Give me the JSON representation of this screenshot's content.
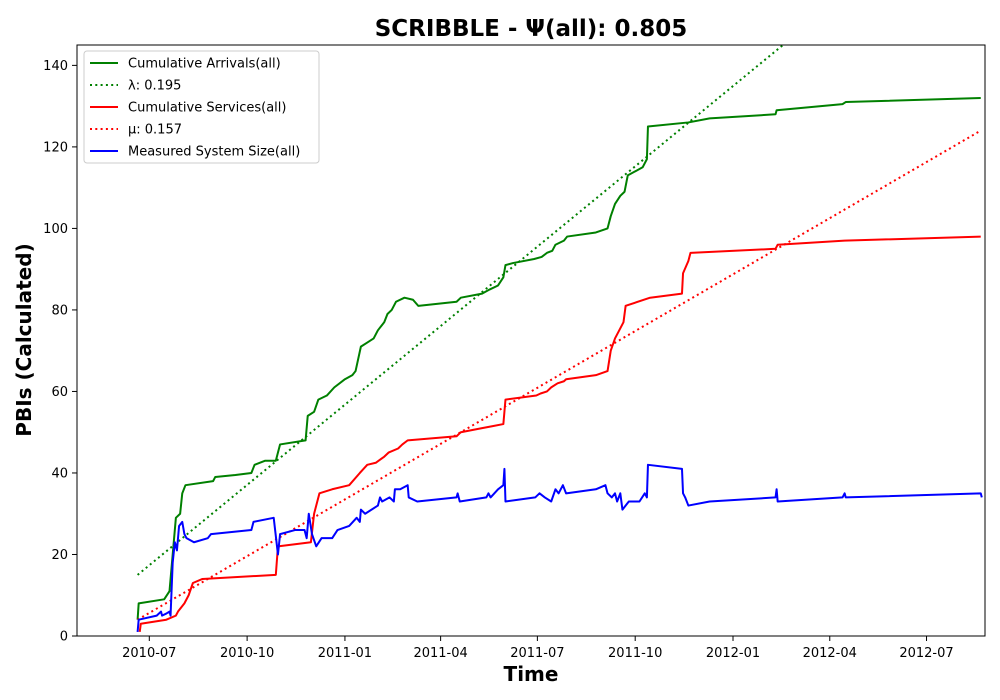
{
  "chart_data": {
    "type": "line",
    "title": "SCRIBBLE -  Ψ(all): 0.805",
    "xlabel": "Time",
    "ylabel": "PBIs (Calculated)",
    "xlim": [
      "2010-04-24",
      "2012-08-25"
    ],
    "ylim": [
      0,
      145
    ],
    "x_ticks": [
      "2010-07-01",
      "2010-10-01",
      "2011-01-01",
      "2011-04-01",
      "2011-07-01",
      "2011-10-01",
      "2012-01-01",
      "2012-04-01",
      "2012-07-01"
    ],
    "x_tick_labels": [
      "2010-07",
      "2010-10",
      "2011-01",
      "2011-04",
      "2011-07",
      "2011-10",
      "2012-01",
      "2012-04",
      "2012-07"
    ],
    "y_ticks": [
      0,
      20,
      40,
      60,
      80,
      100,
      120,
      140
    ],
    "legend_position": "top-left",
    "series": [
      {
        "name": "Cumulative Arrivals(all)",
        "color": "#008000",
        "style": "solid",
        "points": [
          [
            "2010-06-20",
            4
          ],
          [
            "2010-06-21",
            8
          ],
          [
            "2010-07-15",
            9
          ],
          [
            "2010-07-20",
            11
          ],
          [
            "2010-07-23",
            20
          ],
          [
            "2010-07-26",
            29
          ],
          [
            "2010-07-30",
            30
          ],
          [
            "2010-08-01",
            35
          ],
          [
            "2010-08-04",
            37
          ],
          [
            "2010-08-30",
            38
          ],
          [
            "2010-09-01",
            39
          ],
          [
            "2010-09-20",
            39.5
          ],
          [
            "2010-10-05",
            40
          ],
          [
            "2010-10-08",
            42
          ],
          [
            "2010-10-18",
            43
          ],
          [
            "2010-10-28",
            43
          ],
          [
            "2010-11-01",
            47
          ],
          [
            "2010-11-25",
            48
          ],
          [
            "2010-11-27",
            54
          ],
          [
            "2010-12-03",
            55
          ],
          [
            "2010-12-07",
            58
          ],
          [
            "2010-12-15",
            59
          ],
          [
            "2010-12-22",
            61
          ],
          [
            "2011-01-01",
            63
          ],
          [
            "2011-01-08",
            64
          ],
          [
            "2011-01-11",
            65
          ],
          [
            "2011-01-16",
            71
          ],
          [
            "2011-01-22",
            72
          ],
          [
            "2011-01-28",
            73
          ],
          [
            "2011-02-01",
            75
          ],
          [
            "2011-02-07",
            77
          ],
          [
            "2011-02-10",
            79
          ],
          [
            "2011-02-14",
            80
          ],
          [
            "2011-02-18",
            82
          ],
          [
            "2011-02-26",
            83
          ],
          [
            "2011-03-06",
            82.5
          ],
          [
            "2011-03-11",
            81
          ],
          [
            "2011-04-16",
            82
          ],
          [
            "2011-04-20",
            83
          ],
          [
            "2011-05-10",
            84
          ],
          [
            "2011-05-17",
            85
          ],
          [
            "2011-05-25",
            86
          ],
          [
            "2011-05-30",
            88
          ],
          [
            "2011-06-01",
            91
          ],
          [
            "2011-06-08",
            91.5
          ],
          [
            "2011-06-28",
            92.5
          ],
          [
            "2011-07-05",
            93
          ],
          [
            "2011-07-10",
            94
          ],
          [
            "2011-07-15",
            94.5
          ],
          [
            "2011-07-18",
            96
          ],
          [
            "2011-07-26",
            97
          ],
          [
            "2011-07-29",
            98
          ],
          [
            "2011-08-25",
            99
          ],
          [
            "2011-09-05",
            100
          ],
          [
            "2011-09-08",
            103
          ],
          [
            "2011-09-12",
            106
          ],
          [
            "2011-09-17",
            108
          ],
          [
            "2011-09-21",
            109
          ],
          [
            "2011-09-24",
            113
          ],
          [
            "2011-10-08",
            115
          ],
          [
            "2011-10-12",
            117
          ],
          [
            "2011-10-13",
            125
          ],
          [
            "2011-11-20",
            126
          ],
          [
            "2011-12-10",
            127
          ],
          [
            "2012-02-10",
            128
          ],
          [
            "2012-02-11",
            129
          ],
          [
            "2012-04-13",
            130.5
          ],
          [
            "2012-04-16",
            131
          ],
          [
            "2012-08-21",
            132
          ]
        ]
      },
      {
        "name": "λ: 0.195",
        "color": "#008000",
        "style": "dotted",
        "points": [
          [
            "2010-06-20",
            15
          ],
          [
            "2012-02-17",
            145
          ]
        ]
      },
      {
        "name": "Cumulative Services(all)",
        "color": "#ff0000",
        "style": "solid",
        "points": [
          [
            "2010-06-22",
            1
          ],
          [
            "2010-06-23",
            3
          ],
          [
            "2010-07-17",
            4
          ],
          [
            "2010-07-26",
            5
          ],
          [
            "2010-07-28",
            6
          ],
          [
            "2010-08-03",
            8
          ],
          [
            "2010-08-07",
            10
          ],
          [
            "2010-08-11",
            13
          ],
          [
            "2010-08-20",
            14
          ],
          [
            "2010-10-28",
            15
          ],
          [
            "2010-10-30",
            22
          ],
          [
            "2010-11-30",
            23
          ],
          [
            "2010-12-03",
            30
          ],
          [
            "2010-12-08",
            35
          ],
          [
            "2010-12-20",
            36
          ],
          [
            "2011-01-05",
            37
          ],
          [
            "2011-01-15",
            40
          ],
          [
            "2011-01-22",
            42
          ],
          [
            "2011-01-30",
            42.5
          ],
          [
            "2011-02-07",
            44
          ],
          [
            "2011-02-11",
            45
          ],
          [
            "2011-02-20",
            46
          ],
          [
            "2011-02-24",
            47
          ],
          [
            "2011-03-01",
            48
          ],
          [
            "2011-04-16",
            49
          ],
          [
            "2011-04-20",
            50
          ],
          [
            "2011-05-10",
            51
          ],
          [
            "2011-05-20",
            51.5
          ],
          [
            "2011-05-30",
            52
          ],
          [
            "2011-06-01",
            58
          ],
          [
            "2011-06-30",
            59
          ],
          [
            "2011-07-04",
            59.5
          ],
          [
            "2011-07-10",
            60
          ],
          [
            "2011-07-14",
            61
          ],
          [
            "2011-07-20",
            62
          ],
          [
            "2011-07-26",
            62.5
          ],
          [
            "2011-07-28",
            63
          ],
          [
            "2011-08-25",
            64
          ],
          [
            "2011-09-05",
            65
          ],
          [
            "2011-09-08",
            70
          ],
          [
            "2011-09-12",
            73
          ],
          [
            "2011-09-16",
            75
          ],
          [
            "2011-09-20",
            77
          ],
          [
            "2011-09-22",
            81
          ],
          [
            "2011-10-15",
            83
          ],
          [
            "2011-11-14",
            84
          ],
          [
            "2011-11-15",
            89
          ],
          [
            "2011-11-20",
            92
          ],
          [
            "2011-11-22",
            94
          ],
          [
            "2012-02-10",
            95
          ],
          [
            "2012-02-12",
            96
          ],
          [
            "2012-04-15",
            97
          ],
          [
            "2012-08-21",
            98
          ]
        ]
      },
      {
        "name": "μ: 0.157",
        "color": "#ff0000",
        "style": "dotted",
        "points": [
          [
            "2010-06-20",
            4
          ],
          [
            "2012-08-21",
            124
          ]
        ]
      },
      {
        "name": "Measured System Size(all)",
        "color": "#0000ff",
        "style": "solid",
        "points": [
          [
            "2010-06-20",
            1
          ],
          [
            "2010-06-21",
            4
          ],
          [
            "2010-07-08",
            5
          ],
          [
            "2010-07-12",
            6
          ],
          [
            "2010-07-13",
            5
          ],
          [
            "2010-07-17",
            5.5
          ],
          [
            "2010-07-20",
            6
          ],
          [
            "2010-07-21",
            5
          ],
          [
            "2010-07-23",
            18
          ],
          [
            "2010-07-25",
            23
          ],
          [
            "2010-07-27",
            21
          ],
          [
            "2010-07-29",
            27
          ],
          [
            "2010-08-01",
            28
          ],
          [
            "2010-08-03",
            25
          ],
          [
            "2010-08-05",
            24
          ],
          [
            "2010-08-12",
            23
          ],
          [
            "2010-08-25",
            24
          ],
          [
            "2010-08-28",
            25
          ],
          [
            "2010-10-05",
            26
          ],
          [
            "2010-10-07",
            28
          ],
          [
            "2010-10-26",
            29
          ],
          [
            "2010-10-30",
            20
          ],
          [
            "2010-11-01",
            25
          ],
          [
            "2010-11-15",
            26
          ],
          [
            "2010-11-24",
            26
          ],
          [
            "2010-11-26",
            24
          ],
          [
            "2010-11-28",
            30
          ],
          [
            "2010-12-01",
            25
          ],
          [
            "2010-12-05",
            22
          ],
          [
            "2010-12-10",
            24
          ],
          [
            "2010-12-20",
            24
          ],
          [
            "2010-12-25",
            26
          ],
          [
            "2011-01-05",
            27
          ],
          [
            "2011-01-12",
            29
          ],
          [
            "2011-01-15",
            28
          ],
          [
            "2011-01-16",
            31
          ],
          [
            "2011-01-20",
            30
          ],
          [
            "2011-02-01",
            32
          ],
          [
            "2011-02-03",
            34
          ],
          [
            "2011-02-05",
            33
          ],
          [
            "2011-02-12",
            34
          ],
          [
            "2011-02-16",
            33
          ],
          [
            "2011-02-17",
            36
          ],
          [
            "2011-02-22",
            36
          ],
          [
            "2011-03-01",
            37
          ],
          [
            "2011-03-02",
            34
          ],
          [
            "2011-03-10",
            33
          ],
          [
            "2011-04-16",
            34
          ],
          [
            "2011-04-17",
            35
          ],
          [
            "2011-04-19",
            33
          ],
          [
            "2011-05-14",
            34
          ],
          [
            "2011-05-16",
            35
          ],
          [
            "2011-05-18",
            34
          ],
          [
            "2011-05-25",
            36
          ],
          [
            "2011-05-30",
            37
          ],
          [
            "2011-05-31",
            41
          ],
          [
            "2011-06-01",
            33
          ],
          [
            "2011-06-29",
            34
          ],
          [
            "2011-07-03",
            35
          ],
          [
            "2011-07-08",
            34
          ],
          [
            "2011-07-14",
            33
          ],
          [
            "2011-07-18",
            36
          ],
          [
            "2011-07-21",
            35
          ],
          [
            "2011-07-25",
            37
          ],
          [
            "2011-07-28",
            35
          ],
          [
            "2011-08-25",
            36
          ],
          [
            "2011-09-03",
            37
          ],
          [
            "2011-09-05",
            35
          ],
          [
            "2011-09-09",
            34
          ],
          [
            "2011-09-12",
            35
          ],
          [
            "2011-09-14",
            33
          ],
          [
            "2011-09-17",
            35
          ],
          [
            "2011-09-19",
            31
          ],
          [
            "2011-09-25",
            33
          ],
          [
            "2011-10-05",
            33
          ],
          [
            "2011-10-10",
            35
          ],
          [
            "2011-10-12",
            34
          ],
          [
            "2011-10-13",
            42
          ],
          [
            "2011-11-14",
            41
          ],
          [
            "2011-11-15",
            35
          ],
          [
            "2011-11-17",
            34
          ],
          [
            "2011-11-20",
            32
          ],
          [
            "2011-12-10",
            33
          ],
          [
            "2012-02-10",
            34
          ],
          [
            "2012-02-11",
            36
          ],
          [
            "2012-02-12",
            33
          ],
          [
            "2012-04-13",
            34
          ],
          [
            "2012-04-15",
            35
          ],
          [
            "2012-04-16",
            34
          ],
          [
            "2012-08-21",
            35
          ],
          [
            "2012-08-22",
            34
          ]
        ]
      }
    ]
  }
}
